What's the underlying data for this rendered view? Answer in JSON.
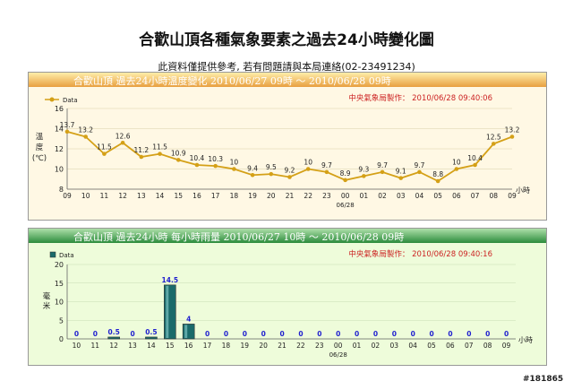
{
  "header": {
    "title": "合歡山頂各種氣象要素之過去24小時變化圖",
    "note": "此資料僅提供參考, 若有問題請與本局連絡(02-23491234)"
  },
  "watermark": "#181865",
  "colors": {
    "temp_line": "#d4a017",
    "rain_bar": "#1a6a6a",
    "value_label": "#1f1fcf"
  },
  "chart_data": [
    {
      "type": "line",
      "title": "合歡山頂  過去24小時溫度變化  2010/06/27 09時 ～ 2010/06/28 09時",
      "credit": "中央氣象局製作：  2010/06/28  09:40:06",
      "legend": [
        "Data"
      ],
      "ylabel": "溫度(℃)",
      "xlabel": "小時",
      "date_label": "06/28",
      "x": [
        "09",
        "10",
        "11",
        "12",
        "13",
        "14",
        "15",
        "16",
        "17",
        "18",
        "19",
        "20",
        "21",
        "22",
        "23",
        "00",
        "01",
        "02",
        "03",
        "04",
        "05",
        "06",
        "07",
        "08",
        "09"
      ],
      "values": [
        13.7,
        13.2,
        11.5,
        12.6,
        11.2,
        11.5,
        10.9,
        10.4,
        10.3,
        10,
        9.4,
        9.5,
        9.2,
        10,
        9.7,
        8.9,
        9.3,
        9.7,
        9.1,
        9.7,
        8.8,
        10,
        10.4,
        12.5,
        13.2
      ],
      "yticks": [
        8,
        10,
        12,
        14,
        16
      ],
      "ylim": [
        8,
        16
      ]
    },
    {
      "type": "bar",
      "title": "合歡山頂  過去24小時  每小時雨量  2010/06/27 10時 ～ 2010/06/28 09時",
      "credit": "中央氣象局製作：  2010/06/28  09:40:16",
      "legend": [
        "Data"
      ],
      "ylabel": "毫米",
      "xlabel": "小時",
      "date_label": "06/28",
      "categories": [
        "10",
        "11",
        "12",
        "13",
        "14",
        "15",
        "16",
        "17",
        "18",
        "19",
        "20",
        "21",
        "22",
        "23",
        "00",
        "01",
        "02",
        "03",
        "04",
        "05",
        "06",
        "07",
        "08",
        "09"
      ],
      "values": [
        0,
        0,
        0.5,
        0,
        0.5,
        14.5,
        4,
        0,
        0,
        0,
        0,
        0,
        0,
        0,
        0,
        0,
        0,
        0,
        0,
        0,
        0,
        0,
        0,
        0
      ],
      "yticks": [
        0,
        5,
        10,
        15,
        20
      ],
      "ylim": [
        0,
        20
      ]
    }
  ]
}
